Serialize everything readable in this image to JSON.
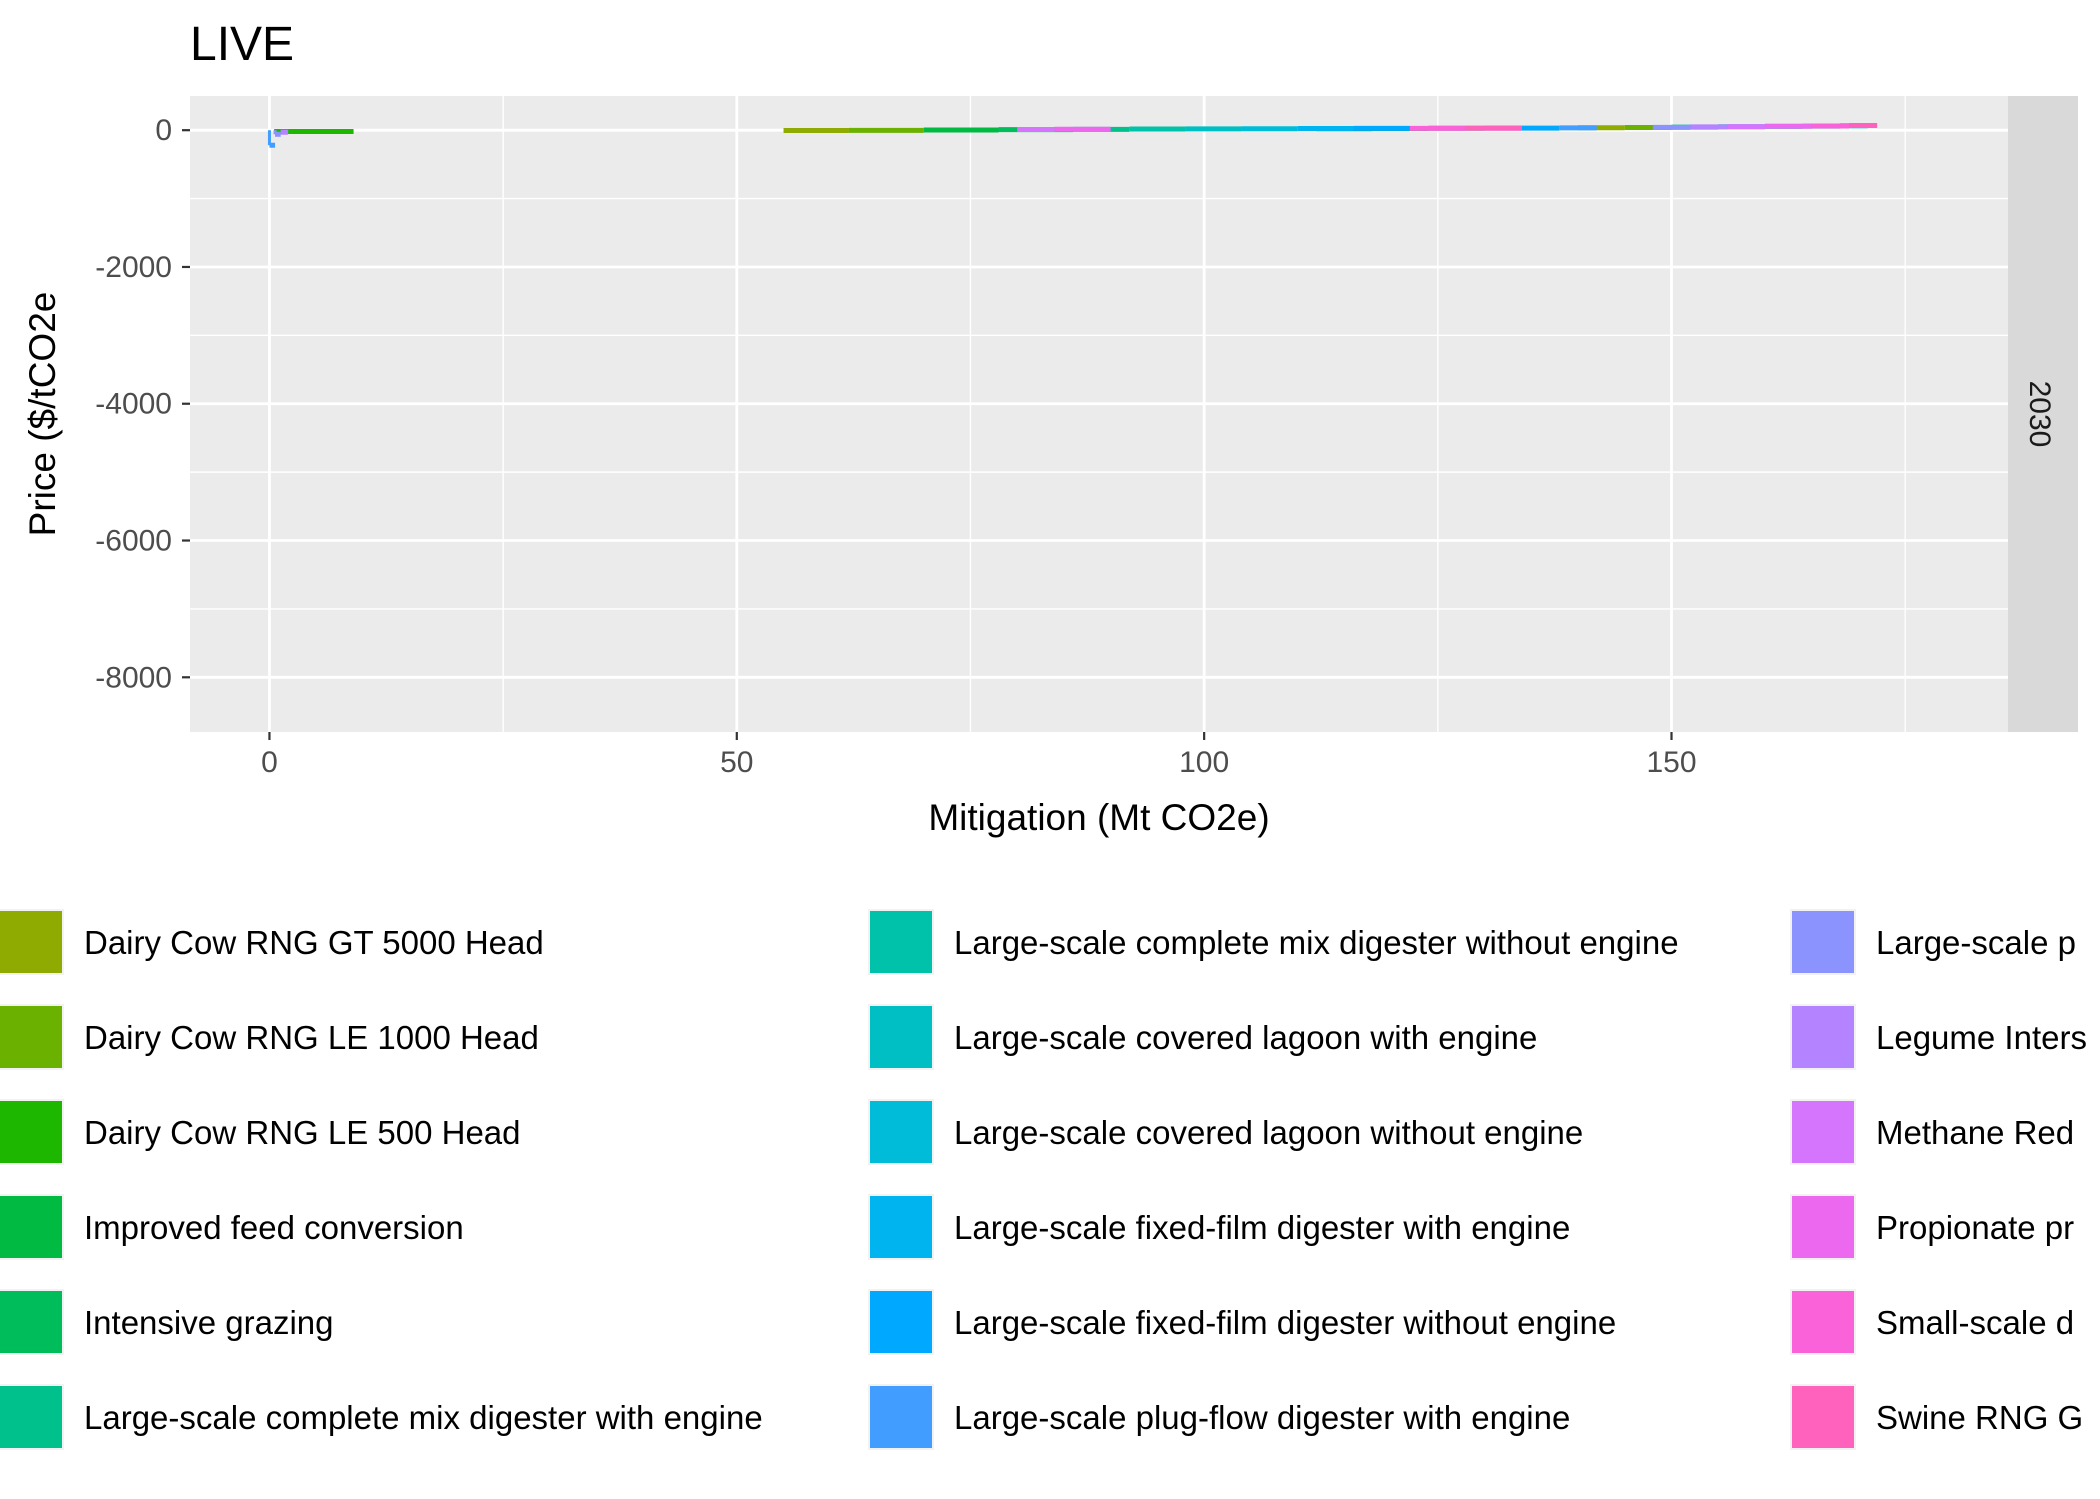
{
  "chart_data": {
    "type": "step",
    "title": "LIVE",
    "xlabel": "Mitigation (Mt CO2e)",
    "ylabel": "Price ($/tCO2e",
    "facet_label": "2030",
    "xlim": [
      -8.5,
      186
    ],
    "ylim": [
      -8800,
      500
    ],
    "x_ticks": [
      0,
      50,
      100,
      150
    ],
    "y_ticks": [
      0,
      -2000,
      -4000,
      -6000,
      -8000
    ],
    "x_tick_labels": [
      "0",
      "50",
      "100",
      "150"
    ],
    "y_tick_labels": [
      "0",
      "-2000",
      "-4000",
      "-6000",
      "-8000"
    ],
    "grid": true,
    "legend_position": "bottom",
    "series": [
      {
        "name": "Dairy Cow RNG GT 5000 Head",
        "color": "#8FAA00",
        "segments": [
          [
            55,
            62,
            -5
          ],
          [
            140,
            145,
            35
          ]
        ]
      },
      {
        "name": "Dairy Cow RNG LE 1000 Head",
        "color": "#6BB100",
        "segments": [
          [
            62,
            70,
            -2
          ],
          [
            145,
            150,
            40
          ]
        ]
      },
      {
        "name": "Dairy Cow RNG LE 500 Head",
        "color": "#1DB700",
        "segments": [
          [
            0.5,
            9,
            -20
          ],
          [
            112,
            118,
            22
          ]
        ]
      },
      {
        "name": "Improved feed conversion",
        "color": "#00BA42",
        "segments": [
          [
            70,
            78,
            2
          ],
          [
            118,
            124,
            25
          ]
        ]
      },
      {
        "name": "Intensive grazing",
        "color": "#00BD5C",
        "segments": [
          [
            78,
            86,
            8
          ],
          [
            124,
            130,
            28
          ]
        ]
      },
      {
        "name": "Large-scale complete mix digester with engine",
        "color": "#00C08B",
        "segments": [
          [
            86,
            92,
            12
          ],
          [
            150,
            155,
            45
          ]
        ]
      },
      {
        "name": "Large-scale complete mix digester without engine",
        "color": "#00C1AA",
        "segments": [
          [
            92,
            98,
            18
          ],
          [
            155,
            160,
            50
          ]
        ]
      },
      {
        "name": "Large-scale covered lagoon with engine",
        "color": "#00BFC4",
        "segments": [
          [
            98,
            104,
            20
          ],
          [
            160,
            164,
            55
          ]
        ]
      },
      {
        "name": "Large-scale covered lagoon without engine",
        "color": "#00BCD8",
        "segments": [
          [
            104,
            110,
            22
          ],
          [
            164,
            168,
            60
          ]
        ]
      },
      {
        "name": "Large-scale fixed-film digester with engine",
        "color": "#00B4EF",
        "segments": [
          [
            110,
            116,
            24
          ],
          [
            168,
            171,
            65
          ]
        ]
      },
      {
        "name": "Large-scale fixed-film digester without engine",
        "color": "#00A9FF",
        "segments": [
          [
            116,
            122,
            26
          ],
          [
            130,
            138,
            30
          ]
        ]
      },
      {
        "name": "Large-scale plug-flow digester with engine",
        "color": "#419DFF",
        "segments": [
          [
            0,
            0.6,
            -220
          ],
          [
            138,
            142,
            33
          ]
        ]
      },
      {
        "name": "Large-scale p",
        "color": "#8B93FF",
        "segments": [
          [
            0.6,
            1.2,
            -60
          ],
          [
            148,
            152,
            42
          ]
        ]
      },
      {
        "name": "Legume Inters",
        "color": "#B483FF",
        "segments": [
          [
            1.2,
            2,
            -30
          ],
          [
            152,
            156,
            48
          ]
        ]
      },
      {
        "name": "Methane Red",
        "color": "#D575FE",
        "segments": [
          [
            80,
            84,
            10
          ],
          [
            156,
            160,
            52
          ]
        ]
      },
      {
        "name": "Propionate pr",
        "color": "#EC69EF",
        "segments": [
          [
            84,
            90,
            14
          ],
          [
            160,
            165,
            58
          ]
        ]
      },
      {
        "name": "Small-scale d",
        "color": "#FA62D9",
        "segments": [
          [
            122,
            128,
            27
          ],
          [
            165,
            169,
            62
          ]
        ]
      },
      {
        "name": "Swine RNG G",
        "color": "#FF62BC",
        "segments": [
          [
            128,
            134,
            29
          ],
          [
            169,
            172,
            68
          ]
        ]
      }
    ]
  }
}
